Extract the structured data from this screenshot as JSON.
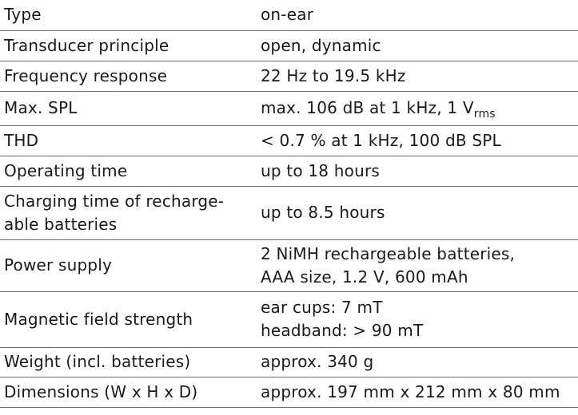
{
  "rows": [
    {
      "label": "Type",
      "value": [
        "on-ear"
      ]
    },
    {
      "label": "Transducer principle",
      "value": [
        "open, dynamic"
      ]
    },
    {
      "label": "Frequency response",
      "value": [
        "22 Hz to 19.5 kHz"
      ]
    },
    {
      "label": "Max. SPL",
      "value": [
        "max. 106 dB at 1 kHz, 1 V"
      ],
      "value_sub": "rms"
    },
    {
      "label": "THD",
      "value": [
        "< 0.7 % at 1 kHz, 100 dB SPL"
      ]
    },
    {
      "label": "Operating time",
      "value": [
        "up to 18 hours"
      ]
    },
    {
      "label": [
        "Charging time of recharge-",
        "able batteries"
      ],
      "value": [
        "up to 8.5 hours"
      ]
    },
    {
      "label": "Power supply",
      "value": [
        "2 NiMH rechargeable batteries,",
        "AAA size, 1.2 V, 600 mAh"
      ]
    },
    {
      "label": "Magnetic field strength",
      "value": [
        "ear cups: 7 mT",
        "headband: > 90 mT"
      ]
    },
    {
      "label": "Weight (incl. batteries)",
      "value": [
        "approx. 340 g"
      ]
    },
    {
      "label": "Dimensions (W x H x D)",
      "value": [
        "approx. 197 mm x 212 mm x 80 mm"
      ]
    }
  ]
}
